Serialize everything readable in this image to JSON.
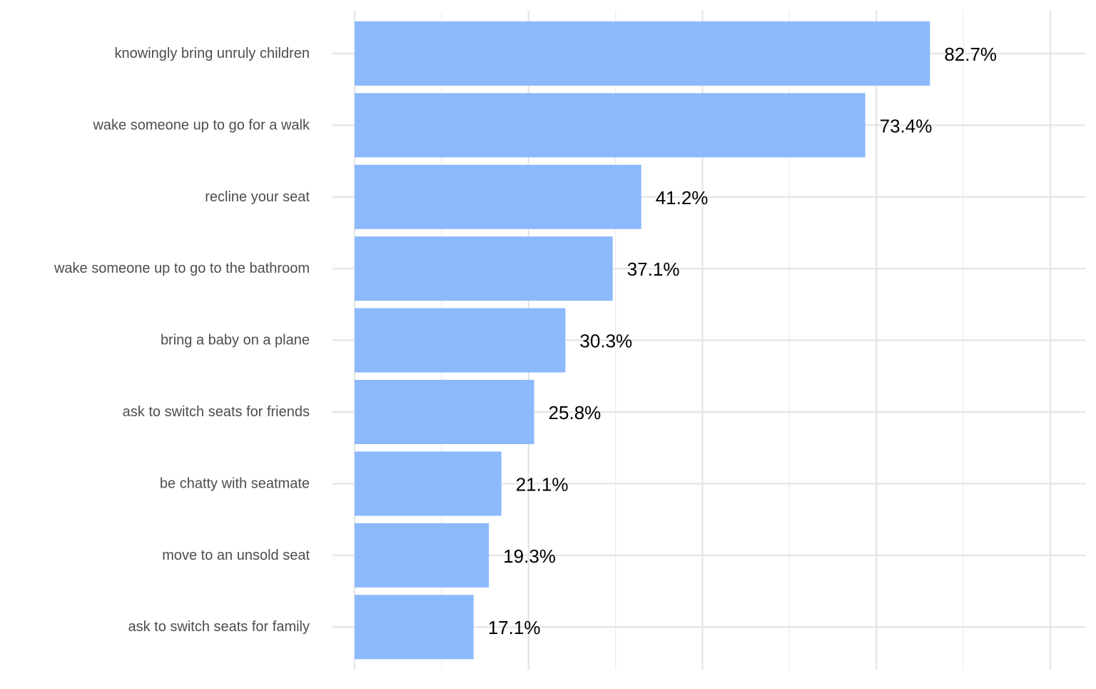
{
  "chart_data": {
    "type": "bar",
    "orientation": "horizontal",
    "categories": [
      "knowingly bring unruly children",
      "wake someone up to go for a walk",
      "recline your seat",
      "wake someone up to go to the bathroom",
      "bring a baby on a plane",
      "ask to switch seats for friends",
      "be chatty with seatmate",
      "move to an unsold seat",
      "ask to switch seats for family"
    ],
    "values": [
      82.7,
      73.4,
      41.2,
      37.1,
      30.3,
      25.8,
      21.1,
      19.3,
      17.1
    ],
    "value_labels": [
      "82.7%",
      "73.4%",
      "41.2%",
      "37.1%",
      "30.3%",
      "25.8%",
      "21.1%",
      "19.3%",
      "17.1%"
    ],
    "xlim": [
      0,
      100
    ],
    "x_major_ticks": [
      0,
      25,
      50,
      75,
      100
    ],
    "x_minor_ticks": [
      12.5,
      37.5,
      62.5,
      87.5
    ],
    "x_tick_labels_shown": false,
    "title": "",
    "xlabel": "",
    "ylabel": "",
    "grid": true,
    "legend": "none",
    "bar_color": "#8ab8fc",
    "grid_color": "#e6e6e6"
  }
}
